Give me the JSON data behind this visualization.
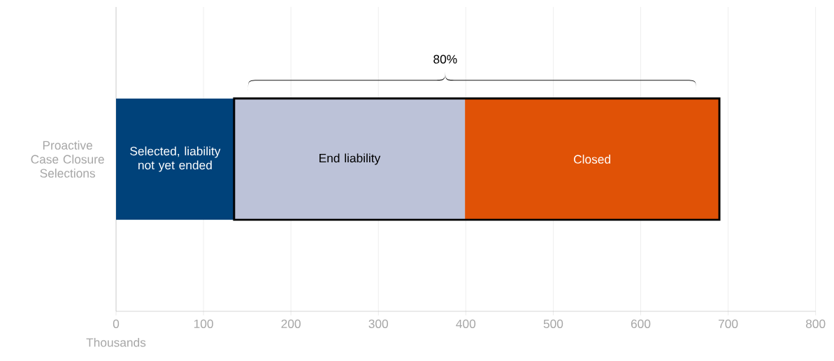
{
  "chart_data": {
    "type": "bar",
    "orientation": "horizontal",
    "stacked": true,
    "categories": [
      "Proactive Case Closure Selections"
    ],
    "series": [
      {
        "name": "Selected, liability not yet ended",
        "color": "#00427a",
        "values": [
          135
        ]
      },
      {
        "name": "End liability",
        "color": "#bcc2d8",
        "values": [
          264
        ]
      },
      {
        "name": "Closed",
        "color": "#e05206",
        "values": [
          291
        ]
      }
    ],
    "xlim": [
      0,
      800
    ],
    "xticks": [
      0,
      100,
      200,
      300,
      400,
      500,
      600,
      700,
      800
    ],
    "xlabel": "Thousands",
    "grid": "x",
    "legend": false,
    "annotations": [
      "80%"
    ]
  }
}
